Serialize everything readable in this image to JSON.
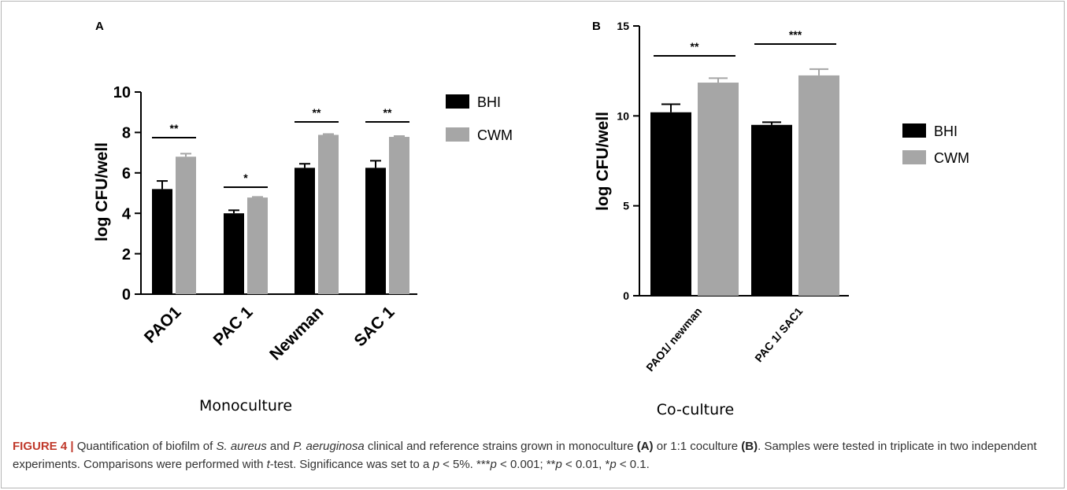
{
  "colors": {
    "bhi": "#000000",
    "cwm": "#a6a6a6",
    "caption_accent": "#c0392b"
  },
  "chart_data": [
    {
      "type": "bar",
      "panel": "A",
      "xlabel": "Monoculture",
      "ylabel": "log CFU/well",
      "ylim": [
        0,
        10
      ],
      "yticks": [
        "0",
        "2",
        "4",
        "6",
        "8",
        "10"
      ],
      "categories": [
        "PAO1",
        "PAC 1",
        "Newman",
        "SAC 1"
      ],
      "series": [
        {
          "name": "BHI",
          "values": [
            5.2,
            4.0,
            6.25,
            6.25
          ],
          "errors": [
            0.4,
            0.15,
            0.2,
            0.35
          ]
        },
        {
          "name": "CWM",
          "values": [
            6.8,
            4.78,
            7.88,
            7.78
          ],
          "errors": [
            0.15,
            0.03,
            0.04,
            0.04
          ]
        }
      ],
      "significance": [
        "**",
        "*",
        "**",
        "**"
      ],
      "legend": "right",
      "grid": false
    },
    {
      "type": "bar",
      "panel": "B",
      "xlabel": "Co-culture",
      "ylabel": "log CFU/well",
      "ylim": [
        0,
        15
      ],
      "yticks": [
        "0",
        "5",
        "10",
        "15"
      ],
      "categories": [
        "PAO1/ newman",
        "PAC 1/ SAC1"
      ],
      "series": [
        {
          "name": "BHI",
          "values": [
            10.2,
            9.5
          ],
          "errors": [
            0.45,
            0.15
          ]
        },
        {
          "name": "CWM",
          "values": [
            11.85,
            12.25
          ],
          "errors": [
            0.25,
            0.35
          ]
        }
      ],
      "significance": [
        "**",
        "***"
      ],
      "legend": "right",
      "grid": false
    }
  ],
  "caption": {
    "label": "FIGURE 4 |",
    "parts": [
      {
        "t": " Quantification of biofilm of ",
        "s": "n"
      },
      {
        "t": "S. aureus",
        "s": "i"
      },
      {
        "t": " and ",
        "s": "n"
      },
      {
        "t": "P. aeruginosa",
        "s": "i"
      },
      {
        "t": " clinical and reference strains grown in monoculture ",
        "s": "n"
      },
      {
        "t": "(A)",
        "s": "b"
      },
      {
        "t": " or 1:1 coculture ",
        "s": "n"
      },
      {
        "t": "(B)",
        "s": "b"
      },
      {
        "t": ". Samples were tested in triplicate in two independent experiments. Comparisons were performed with ",
        "s": "n"
      },
      {
        "t": "t",
        "s": "i"
      },
      {
        "t": "-test. Significance was set to a ",
        "s": "n"
      },
      {
        "t": "p",
        "s": "i"
      },
      {
        "t": " < 5%. ***",
        "s": "n"
      },
      {
        "t": "p",
        "s": "i"
      },
      {
        "t": " < 0.001; **",
        "s": "n"
      },
      {
        "t": "p",
        "s": "i"
      },
      {
        "t": " < 0.01, *",
        "s": "n"
      },
      {
        "t": "p",
        "s": "i"
      },
      {
        "t": " < 0.1.",
        "s": "n"
      }
    ]
  }
}
